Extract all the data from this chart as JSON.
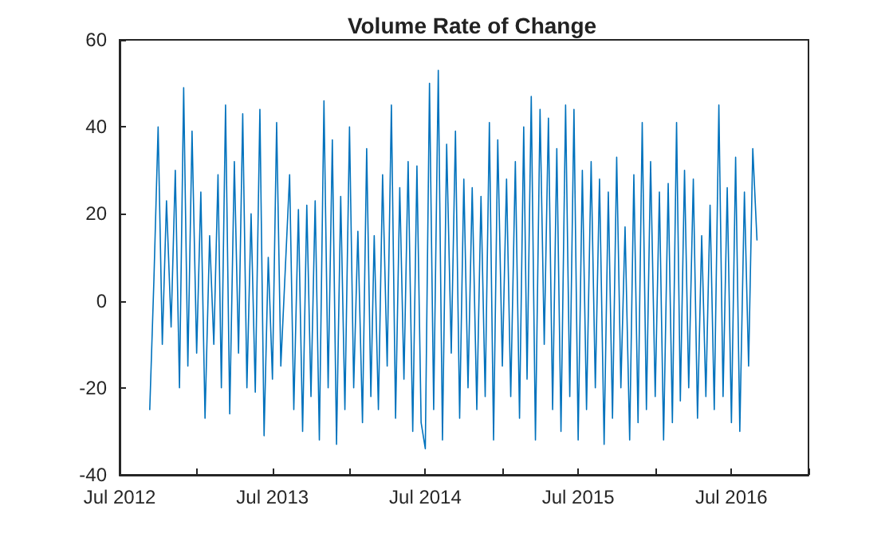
{
  "chart_data": {
    "type": "line",
    "title": "Volume Rate of Change",
    "marker": "none",
    "line_style": "solid",
    "grid": false,
    "xlim": [
      "2012-07-01",
      "2017-01-01"
    ],
    "xticks": [
      {
        "value": "2012-07-01",
        "label": "Jul 2012"
      },
      {
        "value": "2013-01-01",
        "label": null
      },
      {
        "value": "2013-07-01",
        "label": "Jul 2013"
      },
      {
        "value": "2014-01-01",
        "label": null
      },
      {
        "value": "2014-07-01",
        "label": "Jul 2014"
      },
      {
        "value": "2015-01-01",
        "label": null
      },
      {
        "value": "2015-07-01",
        "label": "Jul 2015"
      },
      {
        "value": "2016-01-01",
        "label": null
      },
      {
        "value": "2016-07-01",
        "label": "Jul 2016"
      },
      {
        "value": "2017-01-01",
        "label": null
      }
    ],
    "ylim": [
      -40,
      60
    ],
    "yticks": [
      -40,
      -20,
      0,
      20,
      40,
      60
    ],
    "x": [
      "2012-09-11",
      "2012-09-21",
      "2012-10-01",
      "2012-10-11",
      "2012-10-21",
      "2012-11-01",
      "2012-11-11",
      "2012-11-21",
      "2012-12-01",
      "2012-12-11",
      "2012-12-21",
      "2013-01-01",
      "2013-01-11",
      "2013-01-21",
      "2013-02-01",
      "2013-02-11",
      "2013-02-21",
      "2013-03-01",
      "2013-03-11",
      "2013-03-21",
      "2013-04-01",
      "2013-04-11",
      "2013-04-21",
      "2013-05-01",
      "2013-05-11",
      "2013-05-21",
      "2013-06-01",
      "2013-06-11",
      "2013-06-21",
      "2013-07-01",
      "2013-07-11",
      "2013-07-21",
      "2013-08-01",
      "2013-08-11",
      "2013-08-21",
      "2013-09-01",
      "2013-09-11",
      "2013-09-21",
      "2013-10-01",
      "2013-10-11",
      "2013-10-21",
      "2013-11-01",
      "2013-11-11",
      "2013-11-21",
      "2013-12-01",
      "2013-12-11",
      "2013-12-21",
      "2014-01-01",
      "2014-01-11",
      "2014-01-21",
      "2014-02-01",
      "2014-02-11",
      "2014-02-21",
      "2014-03-01",
      "2014-03-11",
      "2014-03-21",
      "2014-04-01",
      "2014-04-11",
      "2014-04-21",
      "2014-05-01",
      "2014-05-11",
      "2014-05-21",
      "2014-06-01",
      "2014-06-11",
      "2014-06-21",
      "2014-07-01",
      "2014-07-11",
      "2014-07-21",
      "2014-08-01",
      "2014-08-11",
      "2014-08-21",
      "2014-09-01",
      "2014-09-11",
      "2014-09-21",
      "2014-10-01",
      "2014-10-11",
      "2014-10-21",
      "2014-11-01",
      "2014-11-11",
      "2014-11-21",
      "2014-12-01",
      "2014-12-11",
      "2014-12-21",
      "2015-01-01",
      "2015-01-11",
      "2015-01-21",
      "2015-02-01",
      "2015-02-11",
      "2015-02-21",
      "2015-03-01",
      "2015-03-11",
      "2015-03-21",
      "2015-04-01",
      "2015-04-11",
      "2015-04-21",
      "2015-05-01",
      "2015-05-11",
      "2015-05-21",
      "2015-06-01",
      "2015-06-11",
      "2015-06-21",
      "2015-07-01",
      "2015-07-11",
      "2015-07-21",
      "2015-08-01",
      "2015-08-11",
      "2015-08-21",
      "2015-09-01",
      "2015-09-11",
      "2015-09-21",
      "2015-10-01",
      "2015-10-11",
      "2015-10-21",
      "2015-11-01",
      "2015-11-11",
      "2015-11-21",
      "2015-12-01",
      "2015-12-11",
      "2015-12-21",
      "2016-01-01",
      "2016-01-11",
      "2016-01-21",
      "2016-02-01",
      "2016-02-11",
      "2016-02-21",
      "2016-03-01",
      "2016-03-11",
      "2016-03-21",
      "2016-04-01",
      "2016-04-11",
      "2016-04-21",
      "2016-05-01",
      "2016-05-11",
      "2016-05-21",
      "2016-06-01",
      "2016-06-11",
      "2016-06-21",
      "2016-07-01",
      "2016-07-11",
      "2016-07-21",
      "2016-08-01",
      "2016-08-11",
      "2016-08-21",
      "2016-08-31"
    ],
    "series": [
      {
        "color": "#0072bd",
        "values": [
          -25,
          5,
          40,
          -10,
          23,
          -6,
          30,
          -20,
          49,
          -15,
          39,
          -12,
          25,
          -27,
          15,
          -10,
          29,
          -20,
          45,
          -26,
          32,
          -12,
          43,
          -20,
          20,
          -21,
          44,
          -31,
          10,
          -18,
          41,
          -15,
          8,
          29,
          -25,
          21,
          -30,
          22,
          -22,
          23,
          -32,
          46,
          -20,
          37,
          -33,
          24,
          -25,
          40,
          -20,
          16,
          -28,
          35,
          -22,
          15,
          -25,
          29,
          -15,
          45,
          -27,
          26,
          -18,
          32,
          -30,
          31,
          -28,
          -34,
          50,
          -25,
          53,
          -32,
          36,
          -12,
          39,
          -27,
          28,
          -20,
          26,
          -25,
          24,
          -22,
          41,
          -32,
          37,
          -15,
          28,
          -22,
          32,
          -27,
          40,
          -18,
          47,
          -32,
          44,
          -10,
          42,
          -25,
          35,
          -30,
          45,
          -22,
          44,
          -32,
          30,
          -25,
          32,
          -20,
          28,
          -33,
          25,
          -27,
          33,
          -20,
          17,
          -32,
          29,
          -28,
          41,
          -25,
          32,
          -22,
          25,
          -32,
          27,
          -28,
          41,
          -23,
          30,
          -20,
          28,
          -27,
          15,
          -22,
          22,
          -25,
          45,
          -22,
          26,
          -28,
          33,
          -30,
          25,
          -15,
          35,
          14
        ]
      }
    ]
  }
}
